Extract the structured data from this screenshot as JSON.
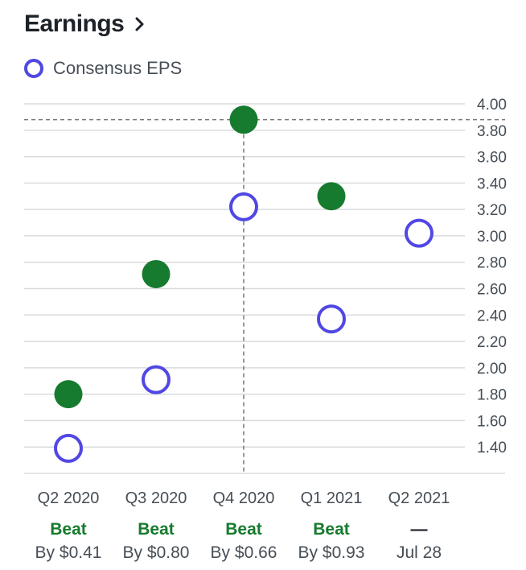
{
  "header": {
    "title": "Earnings"
  },
  "colors": {
    "consensus": "#5148e3",
    "actual": "#167b2e",
    "grid": "#d8dbde",
    "text": "#464e56"
  },
  "chart_data": {
    "type": "scatter",
    "title": "Earnings",
    "legend": [
      "Consensus EPS"
    ],
    "legend_placement": "top-left",
    "grid": true,
    "ylim": [
      1.2,
      4.0
    ],
    "yticks": [
      "1.40",
      "1.60",
      "1.80",
      "2.00",
      "2.20",
      "2.40",
      "2.60",
      "2.80",
      "3.00",
      "3.20",
      "3.40",
      "3.60",
      "3.80",
      "4.00"
    ],
    "categories": [
      "Q2 2020",
      "Q3 2020",
      "Q4 2020",
      "Q1 2021",
      "Q2 2021"
    ],
    "series": [
      {
        "name": "Consensus EPS",
        "values": [
          1.39,
          1.91,
          3.22,
          2.37,
          3.02
        ]
      },
      {
        "values": [
          1.8,
          2.71,
          3.88,
          3.3,
          null
        ]
      }
    ],
    "status": [
      "Beat",
      "Beat",
      "Beat",
      "Beat",
      "—"
    ],
    "detail": [
      "By $0.41",
      "By $0.80",
      "By $0.66",
      "By $0.93",
      "Jul 28"
    ],
    "highlight_index": 2
  }
}
